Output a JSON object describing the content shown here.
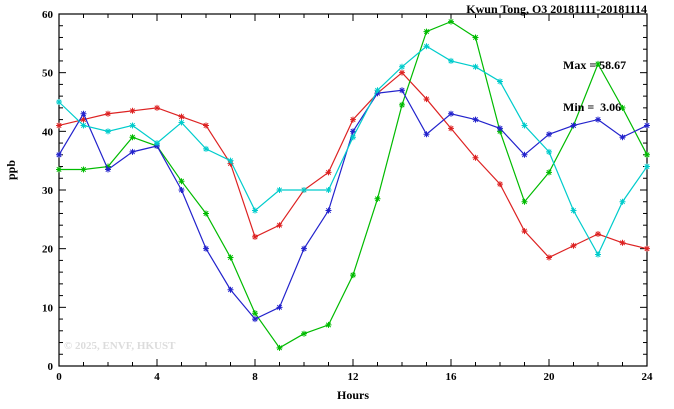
{
  "chart_data": {
    "type": "line",
    "title": "Kwun Tong, O3 20181111-20181114",
    "xlabel": "Hours",
    "ylabel": "ppb",
    "xlim": [
      0,
      24
    ],
    "ylim": [
      0,
      60
    ],
    "xticks_major": [
      0,
      4,
      8,
      12,
      16,
      20,
      24
    ],
    "xticks_minor_step": 1,
    "yticks_major": [
      0,
      10,
      20,
      30,
      40,
      50,
      60
    ],
    "yticks_minor_step": 2,
    "grid": "off",
    "legend": "none",
    "annotations": {
      "max": "Max = 58.67",
      "min": "Min =  3.06"
    },
    "watermark": "© 2025, ENVF, HKUST",
    "x": [
      0,
      1,
      2,
      3,
      4,
      5,
      6,
      7,
      8,
      9,
      10,
      11,
      12,
      13,
      14,
      15,
      16,
      17,
      18,
      19,
      20,
      21,
      22,
      23,
      24
    ],
    "series": [
      {
        "name": "red",
        "color": "#dd2222",
        "values": [
          41,
          42,
          43,
          43.5,
          44,
          42.5,
          41,
          34.5,
          22,
          24,
          30,
          33,
          42,
          46.5,
          50,
          45.5,
          40.5,
          35.5,
          31,
          23,
          18.5,
          20.5,
          22.5,
          21,
          20
        ]
      },
      {
        "name": "green",
        "color": "#00bb00",
        "values": [
          33.5,
          33.5,
          34,
          39,
          37.5,
          31.5,
          26,
          18.5,
          9,
          3.1,
          5.5,
          7,
          15.5,
          28.5,
          44.5,
          57,
          58.7,
          56,
          40,
          28,
          33,
          41,
          51.5,
          44,
          36
        ]
      },
      {
        "name": "blue",
        "color": "#2222cc",
        "values": [
          36,
          43,
          33.5,
          36.5,
          37.5,
          30,
          20,
          13,
          8,
          10,
          20,
          26.5,
          40,
          46.5,
          47,
          39.5,
          43,
          42,
          40.5,
          36,
          39.5,
          41,
          42,
          39,
          41
        ]
      },
      {
        "name": "cyan",
        "color": "#00cccc",
        "values": [
          45,
          41,
          40,
          41,
          38,
          41.5,
          37,
          35,
          26.5,
          30,
          30,
          30,
          39,
          47,
          51,
          54.5,
          52,
          51,
          48.5,
          41,
          36.5,
          26.5,
          19,
          28,
          34
        ]
      }
    ]
  }
}
